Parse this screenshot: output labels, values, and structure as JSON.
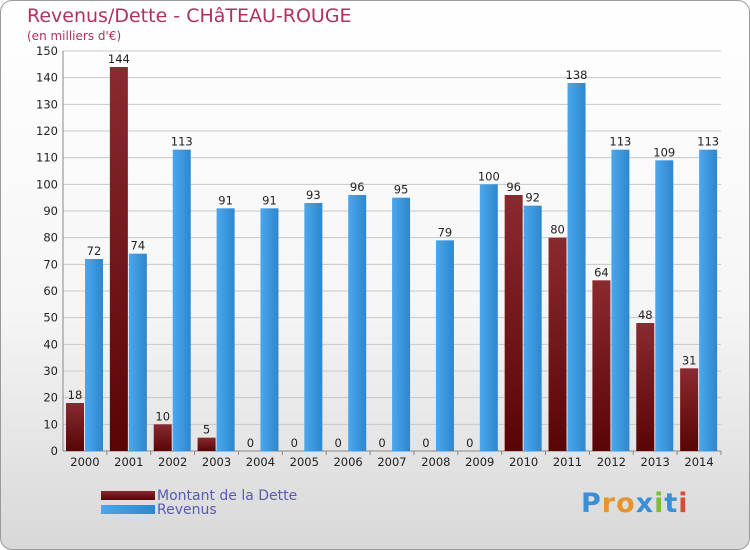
{
  "title": "Revenus/Dette - CHâTEAU-ROUGE",
  "subtitle": "(en milliers d'€)",
  "legend": {
    "dette": "Montant de la Dette",
    "revenus": "Revenus"
  },
  "logo": {
    "text": "Proxiti",
    "letters": [
      "P",
      "r",
      "o",
      "x",
      "i",
      "t",
      "i"
    ]
  },
  "colors": {
    "dette": "#7a1418",
    "revenus": "#3a95dc",
    "axis_text": "#222222",
    "title": "#b03060"
  },
  "chart_data": {
    "type": "bar",
    "categories": [
      "2000",
      "2001",
      "2002",
      "2003",
      "2004",
      "2005",
      "2006",
      "2007",
      "2008",
      "2009",
      "2010",
      "2011",
      "2012",
      "2013",
      "2014"
    ],
    "series": [
      {
        "name": "Montant de la Dette",
        "values": [
          18,
          144,
          10,
          5,
          0,
          0,
          0,
          0,
          0,
          0,
          96,
          80,
          64,
          48,
          31
        ]
      },
      {
        "name": "Revenus",
        "values": [
          72,
          74,
          113,
          91,
          91,
          93,
          96,
          95,
          79,
          100,
          92,
          138,
          113,
          109,
          113
        ]
      }
    ],
    "ylim": [
      0,
      150
    ],
    "yticks": [
      0,
      10,
      20,
      30,
      40,
      50,
      60,
      70,
      80,
      90,
      100,
      110,
      120,
      130,
      140,
      150
    ],
    "grid": true,
    "legend": "bottom-left"
  }
}
